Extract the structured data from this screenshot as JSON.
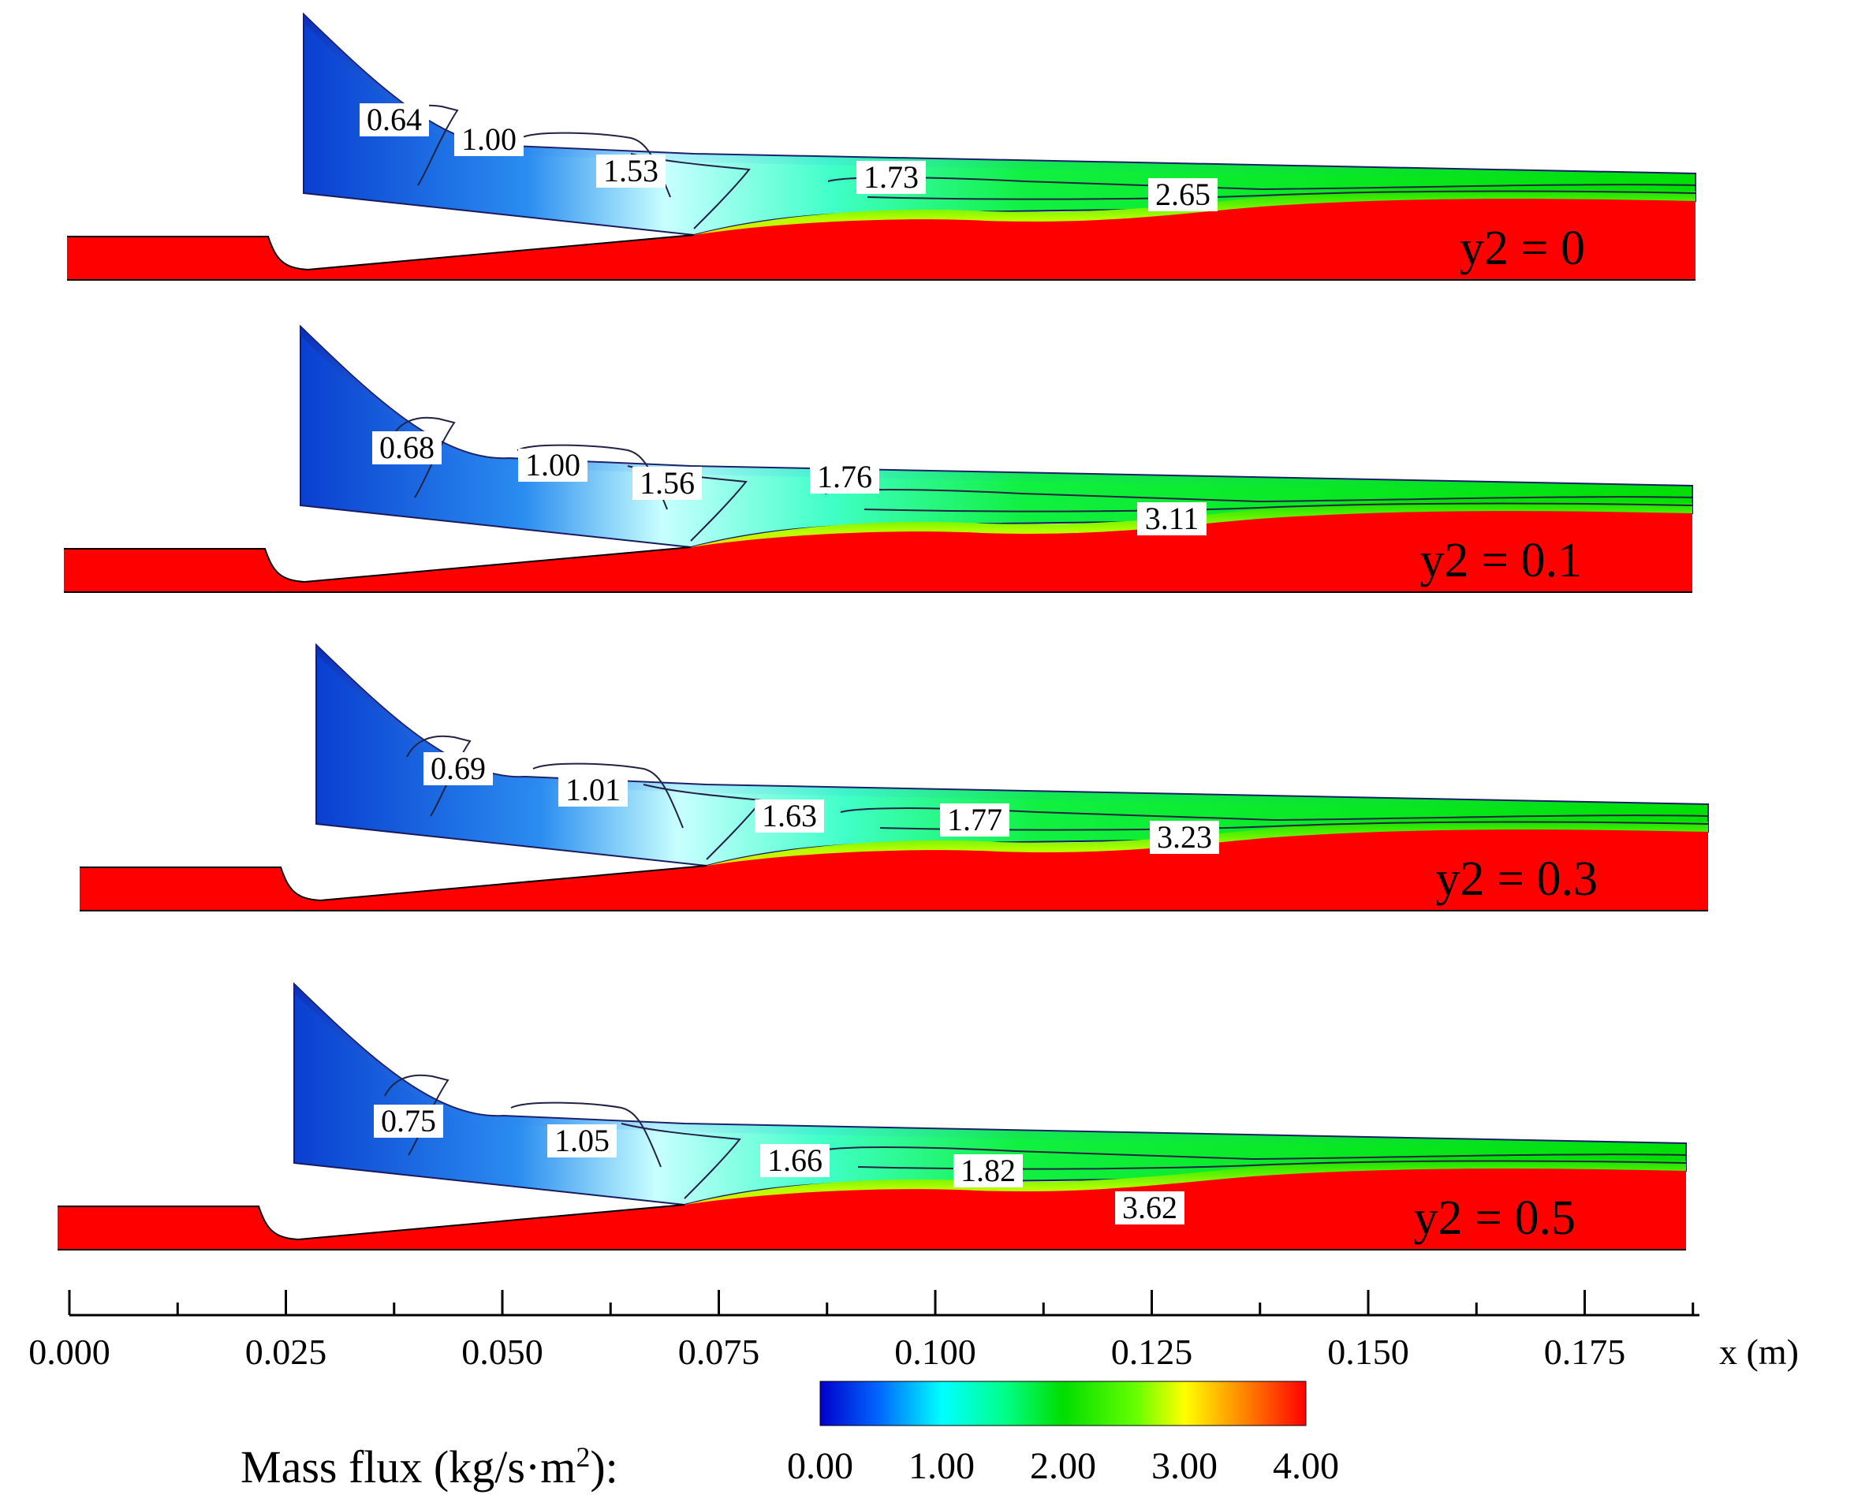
{
  "panels": [
    {
      "label": "y2 = 0",
      "contours": [
        "0.64",
        "1.00",
        "1.53",
        "1.73",
        "2.65"
      ]
    },
    {
      "label": "y2 = 0.1",
      "contours": [
        "0.68",
        "1.00",
        "1.56",
        "1.76",
        "3.11"
      ]
    },
    {
      "label": "y2 = 0.3",
      "contours": [
        "0.69",
        "1.01",
        "1.63",
        "1.77",
        "3.23"
      ]
    },
    {
      "label": "y2 = 0.5",
      "contours": [
        "0.75",
        "1.05",
        "1.66",
        "1.82",
        "3.62"
      ]
    }
  ],
  "x_axis": {
    "label": "x (m)",
    "ticks": [
      "0.000",
      "0.025",
      "0.050",
      "0.075",
      "0.100",
      "0.125",
      "0.150",
      "0.175"
    ]
  },
  "legend": {
    "title_prefix": "Mass flux (kg/s·m",
    "title_sup": "2",
    "title_suffix": "):",
    "ticks": [
      "0.00",
      "1.00",
      "2.00",
      "3.00",
      "4.00"
    ],
    "colors": [
      "#0000cc",
      "#0080ff",
      "#00ffff",
      "#00ff66",
      "#00dd00",
      "#88ff00",
      "#ffff00",
      "#ff8800",
      "#ff0000"
    ]
  }
}
